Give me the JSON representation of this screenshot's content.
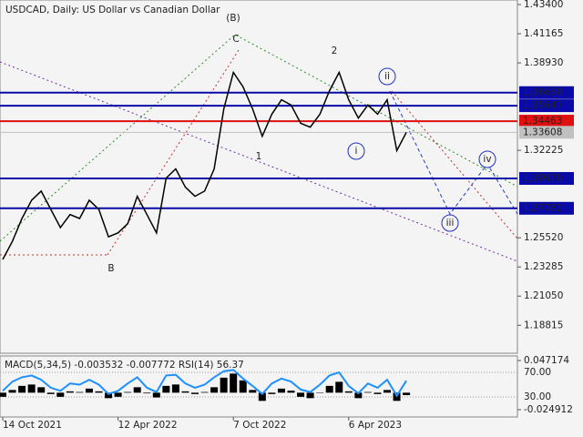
{
  "chart_data": [
    {
      "type": "line",
      "title": "USDCAD, Daily:  US Dollar vs Canadian Dollar",
      "categories": [
        "14 Oct 2021",
        null,
        null,
        null,
        null,
        null,
        null,
        null,
        null,
        null,
        null,
        null,
        "12 Apr 2022",
        null,
        null,
        null,
        null,
        null,
        null,
        null,
        null,
        null,
        null,
        null,
        "7 Oct 2022",
        null,
        null,
        null,
        null,
        null,
        null,
        null,
        null,
        null,
        null,
        null,
        "6 Apr 2023",
        null,
        null,
        null,
        null,
        null,
        null
      ],
      "color": "#000000",
      "values": [
        1.2386,
        1.2525,
        1.27,
        1.284,
        1.291,
        1.277,
        1.263,
        1.273,
        1.27,
        1.284,
        1.277,
        1.256,
        1.259,
        1.266,
        1.287,
        1.273,
        1.259,
        1.301,
        1.308,
        1.294,
        1.287,
        1.291,
        1.308,
        1.354,
        1.382,
        1.371,
        1.354,
        1.333,
        1.35,
        1.361,
        1.357,
        1.343,
        1.34,
        1.35,
        1.368,
        1.382,
        1.361,
        1.347,
        1.357,
        1.35,
        1.361,
        1.322,
        1.33608
      ],
      "ylim": [
        1.1667,
        1.4375
      ],
      "yticks": [
        {
          "value": 1.434,
          "label": "1.43400"
        },
        {
          "value": 1.41165,
          "label": "1.41165"
        },
        {
          "value": 1.3893,
          "label": "1.38930"
        },
        {
          "value": 1.32225,
          "label": "1.32225"
        },
        {
          "value": 1.2552,
          "label": "1.25520"
        },
        {
          "value": 1.23285,
          "label": "1.23285"
        },
        {
          "value": 1.2105,
          "label": "1.21050"
        },
        {
          "value": 1.18815,
          "label": "1.18815"
        }
      ],
      "levels": [
        {
          "value": 1.3665,
          "label": "1.36650",
          "color": "#0a0aa8"
        },
        {
          "value": 1.35647,
          "label": "1.35647",
          "color": "#0a0aa8"
        },
        {
          "value": 1.34463,
          "label": "1.34463",
          "color": "#e01010"
        },
        {
          "value": 1.33608,
          "label": "1.33608",
          "color": "#c0c0c0"
        },
        {
          "value": 1.3007,
          "label": "1.30070",
          "color": "#0a0aa8"
        },
        {
          "value": 1.27782,
          "label": "1.27782",
          "color": "#0a0aa8"
        }
      ],
      "annotations": [
        "(B)",
        "C",
        "2",
        "ii",
        "1",
        "i",
        "iii",
        "iv",
        "B"
      ]
    },
    {
      "type": "combo",
      "title": "MACD(5,34,5) -0.003532 -0.007772 RSI(14) 56.37",
      "series": [
        {
          "type": "bar",
          "color": "#000000",
          "values": [
            -0.006,
            0.004,
            0.01,
            0.012,
            0.008,
            -0.002,
            -0.006,
            0.002,
            0.001,
            0.006,
            0.002,
            -0.008,
            -0.006,
            0.001,
            0.008,
            -0.001,
            -0.007,
            0.01,
            0.012,
            0.002,
            -0.002,
            0.001,
            0.008,
            0.022,
            0.028,
            0.018,
            0.004,
            -0.012,
            -0.002,
            0.006,
            0.003,
            -0.006,
            -0.008,
            0.0,
            0.01,
            0.016,
            0.002,
            -0.008,
            0.001,
            -0.002,
            0.004,
            -0.012,
            -0.003532
          ]
        },
        {
          "type": "line",
          "axis": "y2",
          "color": "#1e90ff",
          "values": [
            40,
            55,
            62,
            65,
            58,
            45,
            40,
            52,
            50,
            58,
            50,
            35,
            40,
            52,
            62,
            45,
            38,
            65,
            66,
            52,
            45,
            50,
            62,
            72,
            74,
            60,
            48,
            35,
            52,
            60,
            55,
            42,
            38,
            50,
            65,
            70,
            48,
            36,
            52,
            45,
            58,
            32,
            56.37
          ]
        }
      ],
      "ylim": [
        -0.024912,
        0.047174
      ],
      "yticks": [
        0.047174,
        -0.024912
      ],
      "y2lim": [
        9.3,
        89.3
      ],
      "y2ticks": [
        {
          "value": 70,
          "label": "70.00"
        },
        {
          "value": 30,
          "label": "30.00"
        }
      ]
    }
  ]
}
